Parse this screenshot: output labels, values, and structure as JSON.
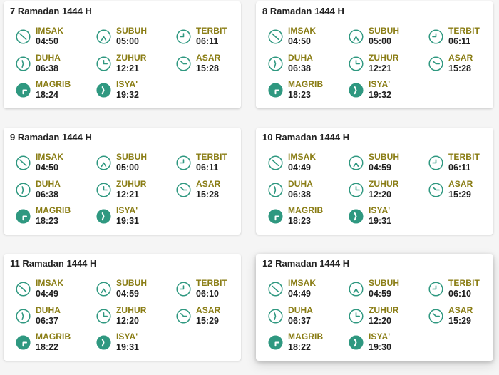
{
  "colors": {
    "accent": "#2f9880",
    "label": "#8a7d15",
    "text": "#1e1e1e"
  },
  "days": [
    {
      "title": "7 Ramadan 1444 H",
      "times": [
        "04:50",
        "05:00",
        "06:11",
        "06:38",
        "12:21",
        "15:28",
        "18:24",
        "19:32"
      ]
    },
    {
      "title": "8 Ramadan 1444 H",
      "times": [
        "04:50",
        "05:00",
        "06:11",
        "06:38",
        "12:21",
        "15:28",
        "18:23",
        "19:32"
      ]
    },
    {
      "title": "9 Ramadan 1444 H",
      "times": [
        "04:50",
        "05:00",
        "06:11",
        "06:38",
        "12:21",
        "15:28",
        "18:23",
        "19:31"
      ]
    },
    {
      "title": "10 Ramadan 1444 H",
      "times": [
        "04:49",
        "04:59",
        "06:11",
        "06:38",
        "12:20",
        "15:29",
        "18:23",
        "19:31"
      ]
    },
    {
      "title": "11 Ramadan 1444 H",
      "times": [
        "04:49",
        "04:59",
        "06:10",
        "06:37",
        "12:20",
        "15:29",
        "18:22",
        "19:31"
      ]
    },
    {
      "title": "12 Ramadan 1444 H",
      "times": [
        "04:49",
        "04:59",
        "06:10",
        "06:37",
        "12:20",
        "15:29",
        "18:22",
        "19:30"
      ]
    }
  ],
  "prayers": [
    {
      "label": "IMSAK",
      "icon": "clock-imsak-icon"
    },
    {
      "label": "SUBUH",
      "icon": "clock-subuh-icon"
    },
    {
      "label": "TERBIT",
      "icon": "clock-terbit-icon"
    },
    {
      "label": "DUHA",
      "icon": "clock-duha-icon"
    },
    {
      "label": "ZUHUR",
      "icon": "clock-zuhur-icon"
    },
    {
      "label": "ASAR",
      "icon": "clock-asar-icon"
    },
    {
      "label": "MAGRIB",
      "icon": "clock-magrib-icon"
    },
    {
      "label": "ISYA'",
      "icon": "clock-isya-icon"
    }
  ]
}
